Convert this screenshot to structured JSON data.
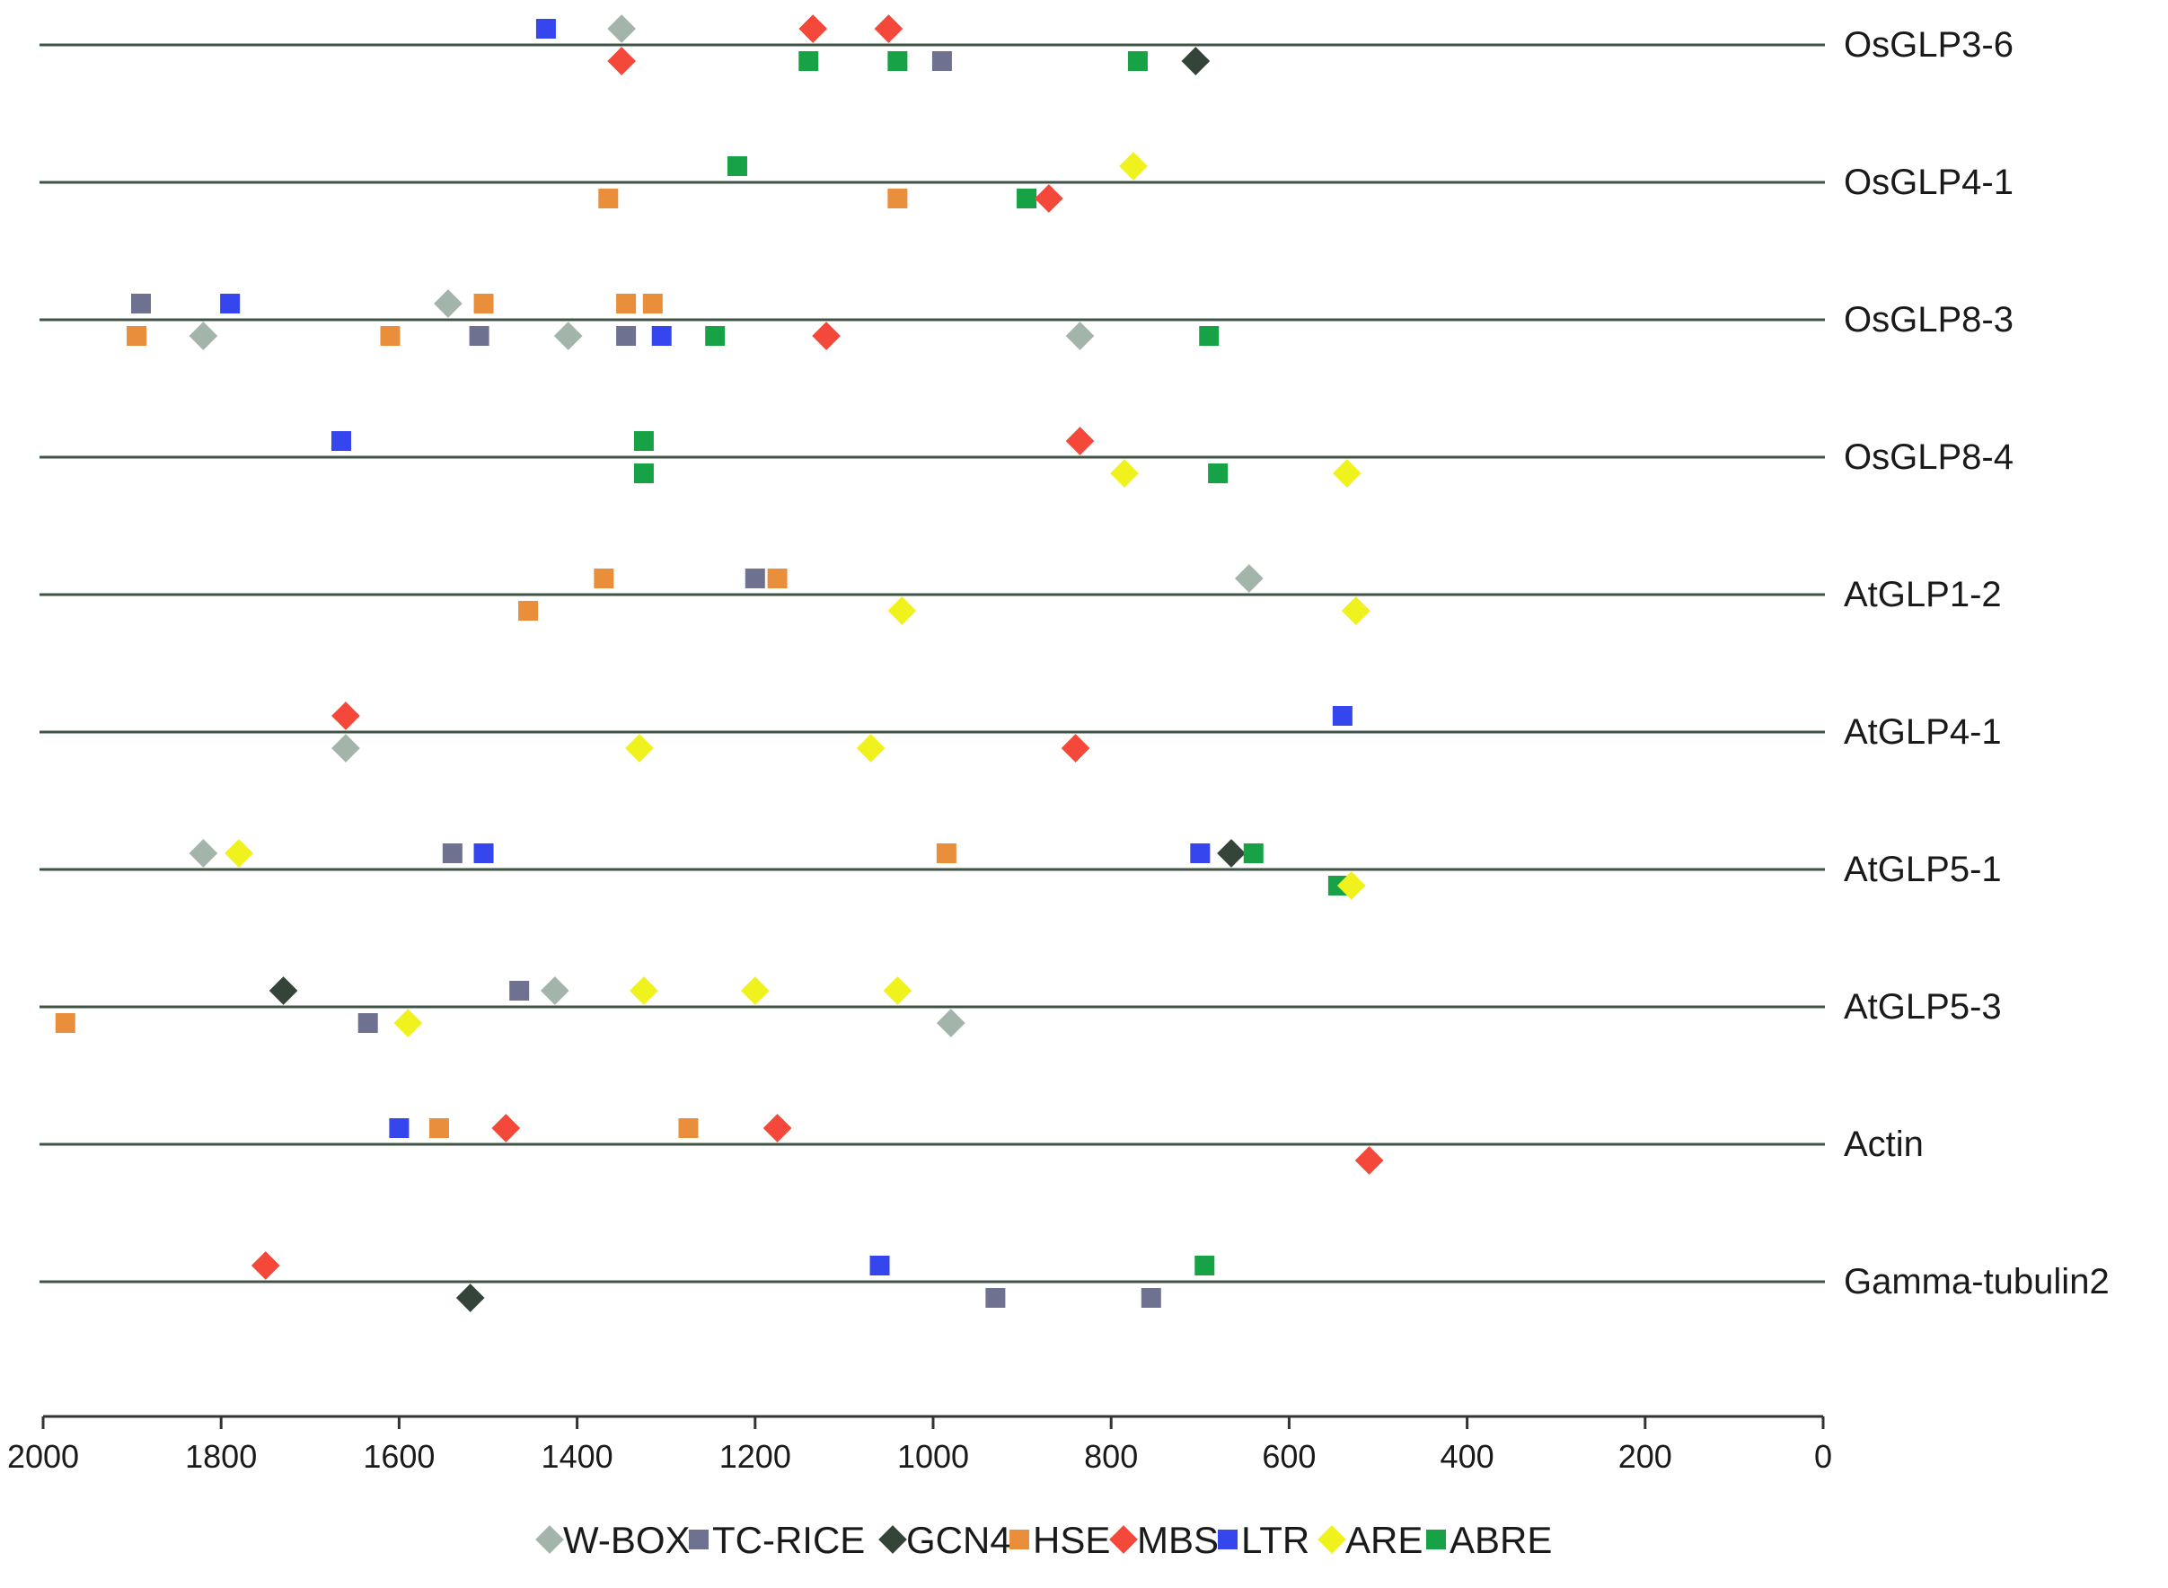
{
  "chart_data": {
    "type": "scatter",
    "title": "",
    "xlabel": "",
    "ylabel": "",
    "x_axis": {
      "reversed": true,
      "range": [
        0,
        2000
      ],
      "ticks": [
        2000,
        1800,
        1600,
        1400,
        1200,
        1000,
        800,
        600,
        400,
        200,
        0
      ],
      "tick_labels": [
        "2000",
        "1800",
        "1600",
        "1400",
        "1200",
        "1000",
        "800",
        "600",
        "400",
        "200",
        "0"
      ]
    },
    "grid": false,
    "legend_position": "bottom",
    "genes": [
      "OsGLP3-6",
      "OsGLP4-1",
      "OsGLP8-3",
      "OsGLP8-4",
      "AtGLP1-2",
      "AtGLP4-1",
      "AtGLP5-1",
      "AtGLP5-3",
      "Actin",
      "Gamma-tubulin2"
    ],
    "series": [
      {
        "name": "W-BOX",
        "shape": "diamond",
        "color": "#a3b5ab"
      },
      {
        "name": "TC-RICE",
        "shape": "square",
        "color": "#6e7290"
      },
      {
        "name": "GCN4",
        "shape": "diamond",
        "color": "#354439"
      },
      {
        "name": "HSE",
        "shape": "square",
        "color": "#e98f3c"
      },
      {
        "name": "MBS",
        "shape": "diamond",
        "color": "#f4483a"
      },
      {
        "name": "LTR",
        "shape": "square",
        "color": "#3546ee"
      },
      {
        "name": "ARE",
        "shape": "diamond",
        "color": "#f0f21e"
      },
      {
        "name": "ABRE",
        "shape": "square",
        "color": "#17a345"
      }
    ],
    "points": [
      {
        "gene": "OsGLP3-6",
        "element": "LTR",
        "position": 1435,
        "strand": "+"
      },
      {
        "gene": "OsGLP3-6",
        "element": "W-BOX",
        "position": 1350,
        "strand": "+"
      },
      {
        "gene": "OsGLP3-6",
        "element": "MBS",
        "position": 1135,
        "strand": "+"
      },
      {
        "gene": "OsGLP3-6",
        "element": "MBS",
        "position": 1050,
        "strand": "+"
      },
      {
        "gene": "OsGLP3-6",
        "element": "MBS",
        "position": 1350,
        "strand": "-"
      },
      {
        "gene": "OsGLP3-6",
        "element": "ABRE",
        "position": 1140,
        "strand": "-"
      },
      {
        "gene": "OsGLP3-6",
        "element": "ABRE",
        "position": 1040,
        "strand": "-"
      },
      {
        "gene": "OsGLP3-6",
        "element": "TC-RICE",
        "position": 990,
        "strand": "-"
      },
      {
        "gene": "OsGLP3-6",
        "element": "ABRE",
        "position": 770,
        "strand": "-"
      },
      {
        "gene": "OsGLP3-6",
        "element": "GCN4",
        "position": 705,
        "strand": "-"
      },
      {
        "gene": "OsGLP4-1",
        "element": "ABRE",
        "position": 1220,
        "strand": "+"
      },
      {
        "gene": "OsGLP4-1",
        "element": "ARE",
        "position": 775,
        "strand": "+"
      },
      {
        "gene": "OsGLP4-1",
        "element": "HSE",
        "position": 1365,
        "strand": "-"
      },
      {
        "gene": "OsGLP4-1",
        "element": "HSE",
        "position": 1040,
        "strand": "-"
      },
      {
        "gene": "OsGLP4-1",
        "element": "ABRE",
        "position": 895,
        "strand": "-"
      },
      {
        "gene": "OsGLP4-1",
        "element": "MBS",
        "position": 870,
        "strand": "-"
      },
      {
        "gene": "OsGLP8-3",
        "element": "TC-RICE",
        "position": 1890,
        "strand": "+"
      },
      {
        "gene": "OsGLP8-3",
        "element": "LTR",
        "position": 1790,
        "strand": "+"
      },
      {
        "gene": "OsGLP8-3",
        "element": "W-BOX",
        "position": 1545,
        "strand": "+"
      },
      {
        "gene": "OsGLP8-3",
        "element": "HSE",
        "position": 1505,
        "strand": "+"
      },
      {
        "gene": "OsGLP8-3",
        "element": "HSE",
        "position": 1345,
        "strand": "+"
      },
      {
        "gene": "OsGLP8-3",
        "element": "HSE",
        "position": 1315,
        "strand": "+"
      },
      {
        "gene": "OsGLP8-3",
        "element": "HSE",
        "position": 1895,
        "strand": "-"
      },
      {
        "gene": "OsGLP8-3",
        "element": "W-BOX",
        "position": 1820,
        "strand": "-"
      },
      {
        "gene": "OsGLP8-3",
        "element": "HSE",
        "position": 1610,
        "strand": "-"
      },
      {
        "gene": "OsGLP8-3",
        "element": "TC-RICE",
        "position": 1510,
        "strand": "-"
      },
      {
        "gene": "OsGLP8-3",
        "element": "W-BOX",
        "position": 1410,
        "strand": "-"
      },
      {
        "gene": "OsGLP8-3",
        "element": "TC-RICE",
        "position": 1345,
        "strand": "-"
      },
      {
        "gene": "OsGLP8-3",
        "element": "LTR",
        "position": 1305,
        "strand": "-"
      },
      {
        "gene": "OsGLP8-3",
        "element": "ABRE",
        "position": 1245,
        "strand": "-"
      },
      {
        "gene": "OsGLP8-3",
        "element": "MBS",
        "position": 1120,
        "strand": "-"
      },
      {
        "gene": "OsGLP8-3",
        "element": "W-BOX",
        "position": 835,
        "strand": "-"
      },
      {
        "gene": "OsGLP8-3",
        "element": "ABRE",
        "position": 690,
        "strand": "-"
      },
      {
        "gene": "OsGLP8-4",
        "element": "LTR",
        "position": 1665,
        "strand": "+"
      },
      {
        "gene": "OsGLP8-4",
        "element": "ABRE",
        "position": 1325,
        "strand": "+"
      },
      {
        "gene": "OsGLP8-4",
        "element": "MBS",
        "position": 835,
        "strand": "+"
      },
      {
        "gene": "OsGLP8-4",
        "element": "ABRE",
        "position": 1325,
        "strand": "-"
      },
      {
        "gene": "OsGLP8-4",
        "element": "ARE",
        "position": 785,
        "strand": "-"
      },
      {
        "gene": "OsGLP8-4",
        "element": "ABRE",
        "position": 680,
        "strand": "-"
      },
      {
        "gene": "OsGLP8-4",
        "element": "ARE",
        "position": 535,
        "strand": "-"
      },
      {
        "gene": "AtGLP1-2",
        "element": "HSE",
        "position": 1370,
        "strand": "+"
      },
      {
        "gene": "AtGLP1-2",
        "element": "TC-RICE",
        "position": 1200,
        "strand": "+"
      },
      {
        "gene": "AtGLP1-2",
        "element": "HSE",
        "position": 1175,
        "strand": "+"
      },
      {
        "gene": "AtGLP1-2",
        "element": "W-BOX",
        "position": 645,
        "strand": "+"
      },
      {
        "gene": "AtGLP1-2",
        "element": "HSE",
        "position": 1455,
        "strand": "-"
      },
      {
        "gene": "AtGLP1-2",
        "element": "ARE",
        "position": 1035,
        "strand": "-"
      },
      {
        "gene": "AtGLP1-2",
        "element": "ARE",
        "position": 525,
        "strand": "-"
      },
      {
        "gene": "AtGLP4-1",
        "element": "MBS",
        "position": 1660,
        "strand": "+"
      },
      {
        "gene": "AtGLP4-1",
        "element": "LTR",
        "position": 540,
        "strand": "+"
      },
      {
        "gene": "AtGLP4-1",
        "element": "W-BOX",
        "position": 1660,
        "strand": "-"
      },
      {
        "gene": "AtGLP4-1",
        "element": "ARE",
        "position": 1330,
        "strand": "-"
      },
      {
        "gene": "AtGLP4-1",
        "element": "ARE",
        "position": 1070,
        "strand": "-"
      },
      {
        "gene": "AtGLP4-1",
        "element": "MBS",
        "position": 840,
        "strand": "-"
      },
      {
        "gene": "AtGLP5-1",
        "element": "W-BOX",
        "position": 1820,
        "strand": "+"
      },
      {
        "gene": "AtGLP5-1",
        "element": "ARE",
        "position": 1780,
        "strand": "+"
      },
      {
        "gene": "AtGLP5-1",
        "element": "TC-RICE",
        "position": 1540,
        "strand": "+"
      },
      {
        "gene": "AtGLP5-1",
        "element": "LTR",
        "position": 1505,
        "strand": "+"
      },
      {
        "gene": "AtGLP5-1",
        "element": "HSE",
        "position": 985,
        "strand": "+"
      },
      {
        "gene": "AtGLP5-1",
        "element": "LTR",
        "position": 700,
        "strand": "+"
      },
      {
        "gene": "AtGLP5-1",
        "element": "GCN4",
        "position": 665,
        "strand": "+"
      },
      {
        "gene": "AtGLP5-1",
        "element": "ABRE",
        "position": 640,
        "strand": "+"
      },
      {
        "gene": "AtGLP5-1",
        "element": "ABRE",
        "position": 545,
        "strand": "-"
      },
      {
        "gene": "AtGLP5-1",
        "element": "ARE",
        "position": 530,
        "strand": "-"
      },
      {
        "gene": "AtGLP5-3",
        "element": "GCN4",
        "position": 1730,
        "strand": "+"
      },
      {
        "gene": "AtGLP5-3",
        "element": "TC-RICE",
        "position": 1465,
        "strand": "+"
      },
      {
        "gene": "AtGLP5-3",
        "element": "W-BOX",
        "position": 1425,
        "strand": "+"
      },
      {
        "gene": "AtGLP5-3",
        "element": "ARE",
        "position": 1325,
        "strand": "+"
      },
      {
        "gene": "AtGLP5-3",
        "element": "ARE",
        "position": 1200,
        "strand": "+"
      },
      {
        "gene": "AtGLP5-3",
        "element": "ARE",
        "position": 1040,
        "strand": "+"
      },
      {
        "gene": "AtGLP5-3",
        "element": "HSE",
        "position": 1975,
        "strand": "-"
      },
      {
        "gene": "AtGLP5-3",
        "element": "TC-RICE",
        "position": 1635,
        "strand": "-"
      },
      {
        "gene": "AtGLP5-3",
        "element": "ARE",
        "position": 1590,
        "strand": "-"
      },
      {
        "gene": "AtGLP5-3",
        "element": "W-BOX",
        "position": 980,
        "strand": "-"
      },
      {
        "gene": "Actin",
        "element": "LTR",
        "position": 1600,
        "strand": "+"
      },
      {
        "gene": "Actin",
        "element": "HSE",
        "position": 1555,
        "strand": "+"
      },
      {
        "gene": "Actin",
        "element": "MBS",
        "position": 1480,
        "strand": "+"
      },
      {
        "gene": "Actin",
        "element": "HSE",
        "position": 1275,
        "strand": "+"
      },
      {
        "gene": "Actin",
        "element": "MBS",
        "position": 1175,
        "strand": "+"
      },
      {
        "gene": "Actin",
        "element": "MBS",
        "position": 510,
        "strand": "-"
      },
      {
        "gene": "Gamma-tubulin2",
        "element": "MBS",
        "position": 1750,
        "strand": "+"
      },
      {
        "gene": "Gamma-tubulin2",
        "element": "LTR",
        "position": 1060,
        "strand": "+"
      },
      {
        "gene": "Gamma-tubulin2",
        "element": "ABRE",
        "position": 695,
        "strand": "+"
      },
      {
        "gene": "Gamma-tubulin2",
        "element": "GCN4",
        "position": 1520,
        "strand": "-"
      },
      {
        "gene": "Gamma-tubulin2",
        "element": "TC-RICE",
        "position": 930,
        "strand": "-"
      },
      {
        "gene": "Gamma-tubulin2",
        "element": "TC-RICE",
        "position": 755,
        "strand": "-"
      }
    ]
  }
}
